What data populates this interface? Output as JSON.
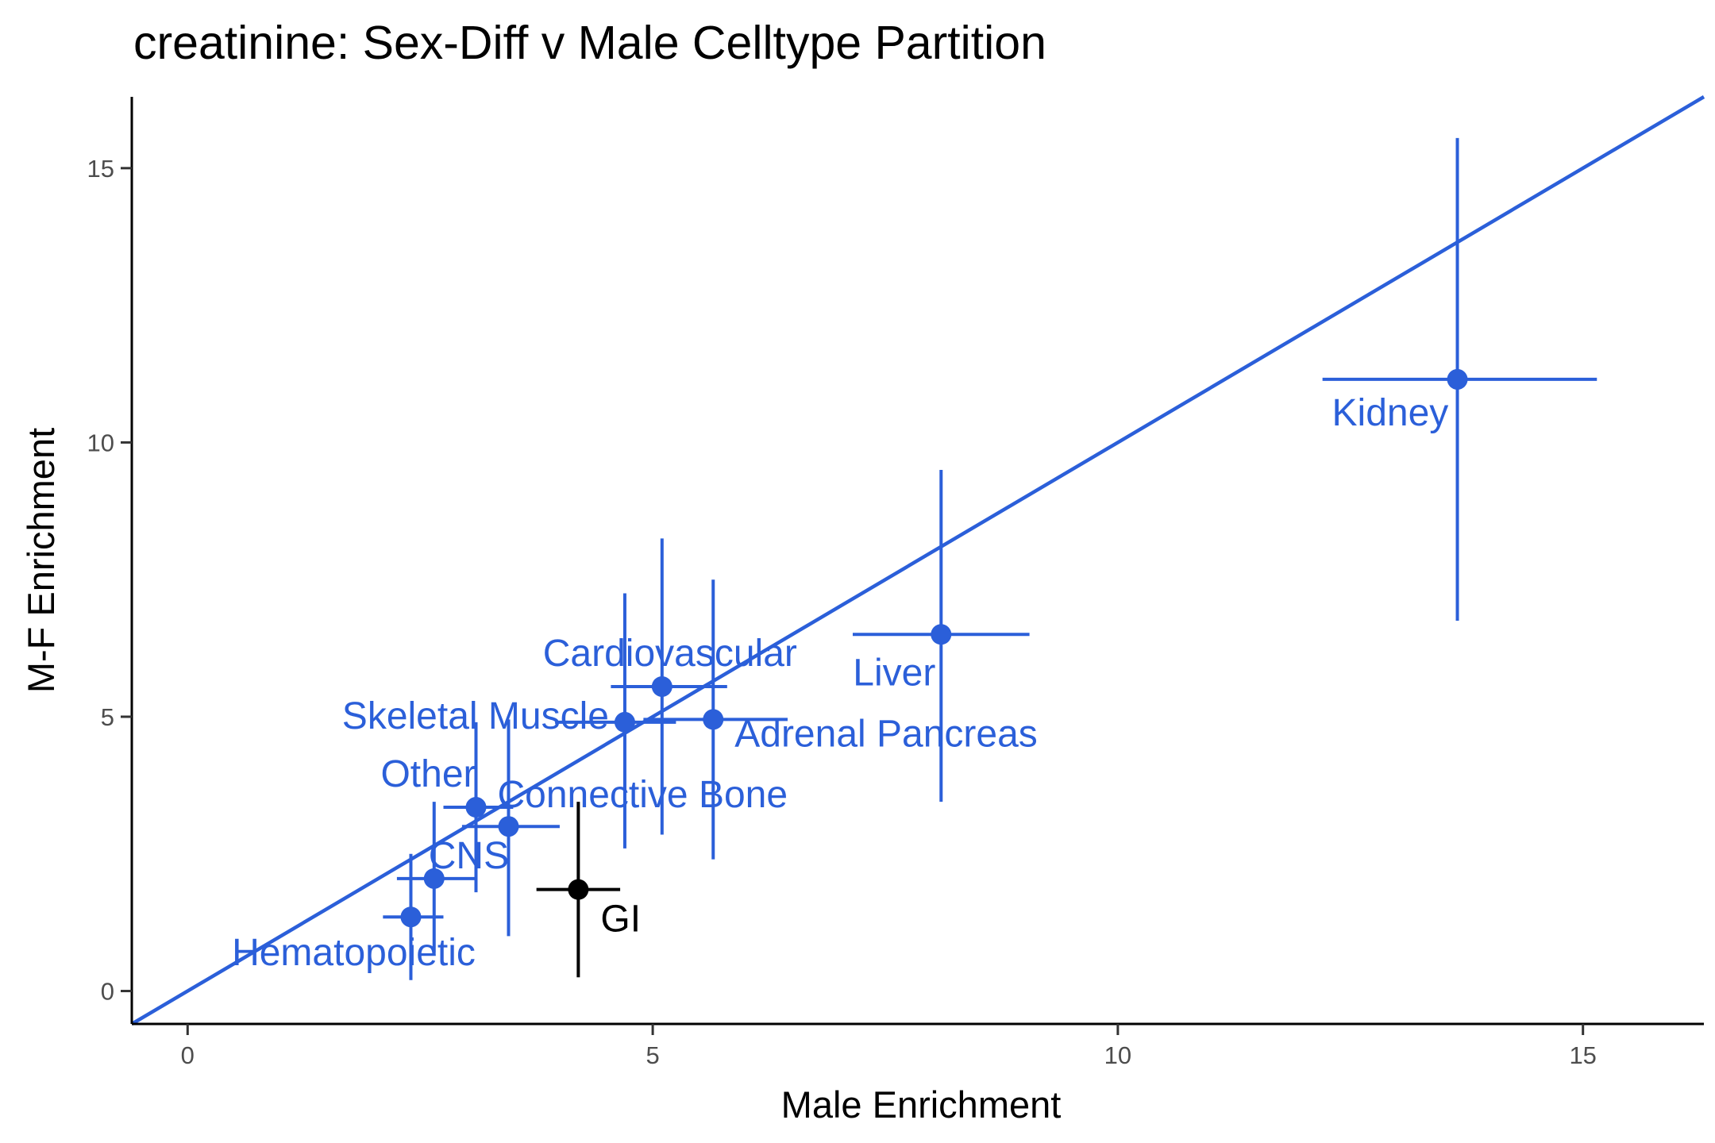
{
  "chart_data": {
    "type": "scatter",
    "title": "creatinine: Sex-Diff v Male Celltype Partition",
    "xlabel": "Male Enrichment",
    "ylabel": "M-F Enrichment",
    "xlim": [
      -0.6,
      16.3
    ],
    "ylim": [
      -0.6,
      16.3
    ],
    "xticks": [
      0,
      5,
      10,
      15
    ],
    "yticks": [
      0,
      5,
      10,
      15
    ],
    "grid": false,
    "legend": "none",
    "reference_line": {
      "intercept": 0,
      "slope": 1,
      "color": "#2B5FD9"
    },
    "colors": {
      "highlight": "#2B5FD9",
      "other": "#000000"
    },
    "points": [
      {
        "label": "Kidney",
        "x": 13.65,
        "y": 11.15,
        "x_err": [
          12.2,
          15.15
        ],
        "y_err": [
          6.75,
          15.55
        ],
        "color": "#2B5FD9"
      },
      {
        "label": "Liver",
        "x": 8.1,
        "y": 6.5,
        "x_err": [
          7.15,
          9.05
        ],
        "y_err": [
          3.45,
          9.5
        ],
        "color": "#2B5FD9"
      },
      {
        "label": "Adrenal Pancreas",
        "x": 5.65,
        "y": 4.95,
        "x_err": [
          4.9,
          6.45
        ],
        "y_err": [
          2.4,
          7.5
        ],
        "color": "#2B5FD9"
      },
      {
        "label": "Cardiovascular",
        "x": 5.1,
        "y": 5.55,
        "x_err": [
          4.55,
          5.8
        ],
        "y_err": [
          2.85,
          8.25
        ],
        "color": "#2B5FD9"
      },
      {
        "label": "Skeletal Muscle",
        "x": 4.7,
        "y": 4.9,
        "x_err": [
          3.95,
          5.25
        ],
        "y_err": [
          2.6,
          7.25
        ],
        "color": "#2B5FD9"
      },
      {
        "label": "Connective Bone",
        "x": 3.45,
        "y": 3.0,
        "x_err": [
          2.95,
          4.0
        ],
        "y_err": [
          1.0,
          4.95
        ],
        "color": "#2B5FD9"
      },
      {
        "label": "Other",
        "x": 3.1,
        "y": 3.35,
        "x_err": [
          2.75,
          3.5
        ],
        "y_err": [
          1.8,
          4.9
        ],
        "color": "#2B5FD9"
      },
      {
        "label": "CNS",
        "x": 2.65,
        "y": 2.05,
        "x_err": [
          2.25,
          3.1
        ],
        "y_err": [
          0.7,
          3.45
        ],
        "color": "#2B5FD9"
      },
      {
        "label": "Hematopoietic",
        "x": 2.4,
        "y": 1.35,
        "x_err": [
          2.1,
          2.75
        ],
        "y_err": [
          0.2,
          2.5
        ],
        "color": "#2B5FD9"
      },
      {
        "label": "GI",
        "x": 4.2,
        "y": 1.85,
        "x_err": [
          3.75,
          4.65
        ],
        "y_err": [
          0.25,
          3.45
        ],
        "color": "#000000"
      }
    ]
  }
}
